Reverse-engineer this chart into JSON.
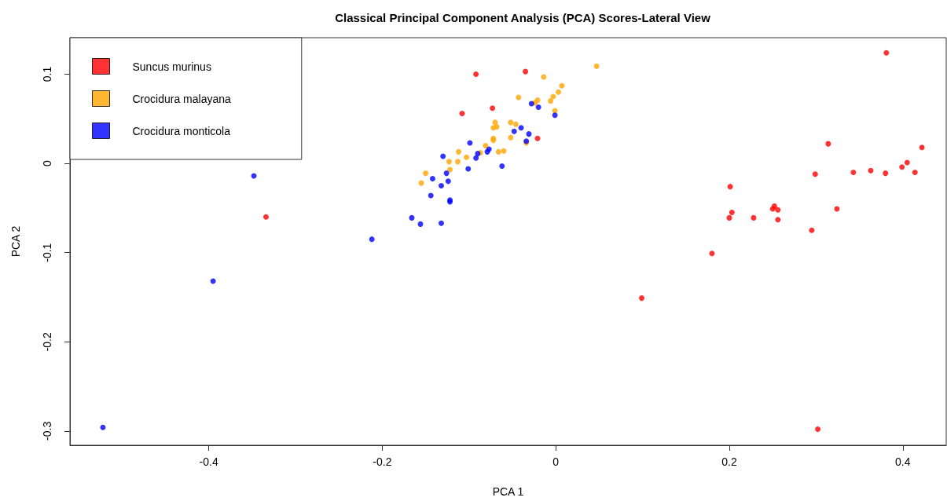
{
  "chart_data": {
    "type": "scatter",
    "title": "Classical Principal Component Analysis (PCA) Scores-Lateral View",
    "xlabel": "PCA 1",
    "ylabel": "PCA 2",
    "xlim": [
      -0.56,
      0.45
    ],
    "ylim": [
      -0.316,
      0.141
    ],
    "xticks": [
      -0.4,
      -0.2,
      0,
      0.2,
      0.4
    ],
    "yticks": [
      -0.3,
      -0.2,
      -0.1,
      0,
      0.1
    ],
    "grid": false,
    "legend": "top left",
    "marker": "circle",
    "series": [
      {
        "name": "Suncus murinus",
        "color": "#ff0000",
        "x": [
          -0.334,
          -0.092,
          -0.035,
          -0.108,
          -0.073,
          -0.021,
          0.381,
          0.314,
          0.422,
          0.299,
          0.343,
          0.363,
          0.38,
          0.399,
          0.405,
          0.414,
          0.201,
          0.203,
          0.2,
          0.228,
          0.25,
          0.252,
          0.256,
          0.256,
          0.324,
          0.295,
          0.18,
          0.099,
          0.302
        ],
        "values": [
          -0.06,
          0.1,
          0.103,
          0.056,
          0.062,
          0.028,
          0.124,
          0.022,
          0.018,
          -0.012,
          -0.01,
          -0.008,
          -0.011,
          -0.004,
          0.001,
          -0.01,
          -0.026,
          -0.055,
          -0.061,
          -0.061,
          -0.051,
          -0.048,
          -0.052,
          -0.063,
          -0.051,
          -0.075,
          -0.101,
          -0.151,
          -0.298
        ]
      },
      {
        "name": "Crocidura malayana",
        "color": "#ffa500",
        "x": [
          0.047,
          -0.014,
          0.007,
          0.003,
          -0.003,
          -0.006,
          -0.043,
          -0.021,
          -0.024,
          -0.001,
          -0.07,
          -0.072,
          -0.068,
          -0.052,
          -0.046,
          -0.072,
          -0.072,
          -0.052,
          -0.034,
          -0.081,
          -0.066,
          -0.06,
          -0.087,
          -0.112,
          -0.103,
          -0.123,
          -0.113,
          -0.122,
          -0.15,
          -0.155
        ],
        "values": [
          0.109,
          0.097,
          0.087,
          0.08,
          0.075,
          0.07,
          0.074,
          0.071,
          0.068,
          0.059,
          0.046,
          0.04,
          0.041,
          0.046,
          0.044,
          0.028,
          0.026,
          0.029,
          0.023,
          0.02,
          0.013,
          0.014,
          0.012,
          0.013,
          0.007,
          0.002,
          0.002,
          -0.007,
          -0.011,
          -0.022
        ]
      },
      {
        "name": "Crocidura monticola",
        "color": "#0000ff",
        "x": [
          -0.028,
          -0.02,
          -0.001,
          -0.04,
          -0.048,
          -0.031,
          -0.034,
          -0.099,
          -0.077,
          -0.079,
          -0.09,
          -0.092,
          -0.13,
          -0.062,
          -0.101,
          -0.126,
          -0.142,
          -0.124,
          -0.132,
          -0.144,
          -0.122,
          -0.122,
          -0.166,
          -0.156,
          -0.132,
          -0.212,
          -0.348,
          -0.395,
          -0.522
        ],
        "values": [
          0.067,
          0.063,
          0.054,
          0.04,
          0.036,
          0.033,
          0.025,
          0.023,
          0.016,
          0.013,
          0.011,
          0.006,
          0.008,
          -0.003,
          -0.006,
          -0.011,
          -0.017,
          -0.02,
          -0.025,
          -0.036,
          -0.041,
          -0.043,
          -0.061,
          -0.068,
          -0.067,
          -0.085,
          -0.014,
          -0.132,
          -0.296
        ]
      }
    ]
  }
}
